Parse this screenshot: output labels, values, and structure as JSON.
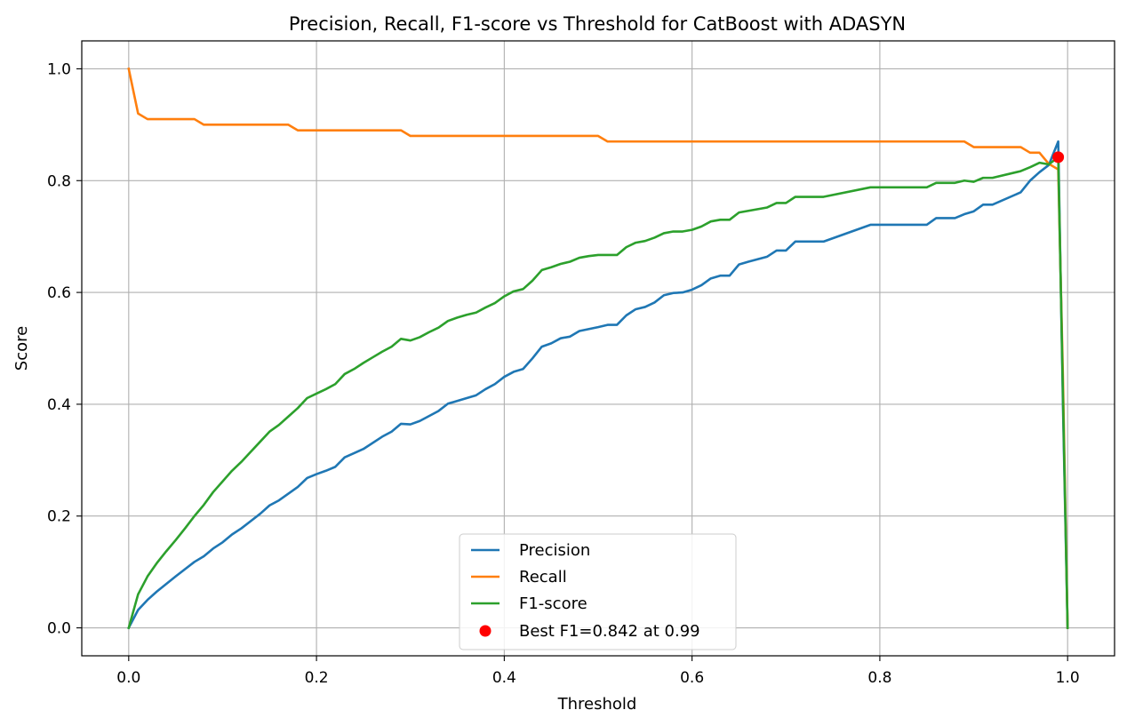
{
  "chart_data": {
    "type": "line",
    "title": "Precision, Recall, F1-score vs Threshold for CatBoost with ADASYN",
    "xlabel": "Threshold",
    "ylabel": "Score",
    "xlim": [
      -0.05,
      1.05
    ],
    "ylim": [
      -0.05,
      1.05
    ],
    "xticks": [
      0.0,
      0.2,
      0.4,
      0.6,
      0.8,
      1.0
    ],
    "xtick_labels": [
      "0.0",
      "0.2",
      "0.4",
      "0.6",
      "0.8",
      "1.0"
    ],
    "yticks": [
      0.0,
      0.2,
      0.4,
      0.6,
      0.8,
      1.0
    ],
    "ytick_labels": [
      "0.0",
      "0.2",
      "0.4",
      "0.6",
      "0.8",
      "1.0"
    ],
    "grid": true,
    "legend_position": "bottom-center",
    "series": [
      {
        "name": "Precision",
        "color": "#1f77b4",
        "points": [
          [
            0.0,
            0.0
          ],
          [
            0.01,
            0.032
          ],
          [
            0.02,
            0.05
          ],
          [
            0.03,
            0.065
          ],
          [
            0.05,
            0.092
          ],
          [
            0.07,
            0.118
          ],
          [
            0.08,
            0.128
          ],
          [
            0.09,
            0.142
          ],
          [
            0.1,
            0.153
          ],
          [
            0.11,
            0.167
          ],
          [
            0.12,
            0.178
          ],
          [
            0.13,
            0.191
          ],
          [
            0.14,
            0.204
          ],
          [
            0.15,
            0.219
          ],
          [
            0.16,
            0.228
          ],
          [
            0.17,
            0.24
          ],
          [
            0.18,
            0.252
          ],
          [
            0.19,
            0.268
          ],
          [
            0.2,
            0.275
          ],
          [
            0.21,
            0.281
          ],
          [
            0.22,
            0.288
          ],
          [
            0.23,
            0.305
          ],
          [
            0.25,
            0.32
          ],
          [
            0.27,
            0.342
          ],
          [
            0.28,
            0.351
          ],
          [
            0.29,
            0.365
          ],
          [
            0.3,
            0.364
          ],
          [
            0.31,
            0.37
          ],
          [
            0.32,
            0.379
          ],
          [
            0.33,
            0.388
          ],
          [
            0.34,
            0.401
          ],
          [
            0.36,
            0.411
          ],
          [
            0.37,
            0.416
          ],
          [
            0.38,
            0.427
          ],
          [
            0.39,
            0.436
          ],
          [
            0.4,
            0.449
          ],
          [
            0.41,
            0.458
          ],
          [
            0.42,
            0.463
          ],
          [
            0.43,
            0.482
          ],
          [
            0.44,
            0.503
          ],
          [
            0.45,
            0.509
          ],
          [
            0.46,
            0.518
          ],
          [
            0.47,
            0.521
          ],
          [
            0.48,
            0.531
          ],
          [
            0.5,
            0.538
          ],
          [
            0.51,
            0.542
          ],
          [
            0.52,
            0.542
          ],
          [
            0.53,
            0.559
          ],
          [
            0.54,
            0.57
          ],
          [
            0.55,
            0.574
          ],
          [
            0.56,
            0.582
          ],
          [
            0.57,
            0.595
          ],
          [
            0.58,
            0.599
          ],
          [
            0.59,
            0.6
          ],
          [
            0.6,
            0.605
          ],
          [
            0.61,
            0.613
          ],
          [
            0.62,
            0.625
          ],
          [
            0.63,
            0.63
          ],
          [
            0.64,
            0.63
          ],
          [
            0.65,
            0.65
          ],
          [
            0.66,
            0.655
          ],
          [
            0.68,
            0.664
          ],
          [
            0.69,
            0.675
          ],
          [
            0.7,
            0.675
          ],
          [
            0.71,
            0.691
          ],
          [
            0.74,
            0.691
          ],
          [
            0.79,
            0.721
          ],
          [
            0.85,
            0.721
          ],
          [
            0.86,
            0.733
          ],
          [
            0.88,
            0.733
          ],
          [
            0.89,
            0.74
          ],
          [
            0.9,
            0.745
          ],
          [
            0.91,
            0.757
          ],
          [
            0.92,
            0.757
          ],
          [
            0.95,
            0.779
          ],
          [
            0.96,
            0.8
          ],
          [
            0.97,
            0.815
          ],
          [
            0.98,
            0.828
          ],
          [
            0.99,
            0.87
          ],
          [
            0.995,
            0.4
          ],
          [
            1.0,
            0.0
          ]
        ]
      },
      {
        "name": "Recall",
        "color": "#ff7f0e",
        "points": [
          [
            0.0,
            1.0
          ],
          [
            0.01,
            0.92
          ],
          [
            0.02,
            0.91
          ],
          [
            0.07,
            0.91
          ],
          [
            0.08,
            0.9
          ],
          [
            0.17,
            0.9
          ],
          [
            0.18,
            0.89
          ],
          [
            0.29,
            0.89
          ],
          [
            0.3,
            0.88
          ],
          [
            0.5,
            0.88
          ],
          [
            0.51,
            0.87
          ],
          [
            0.89,
            0.87
          ],
          [
            0.9,
            0.86
          ],
          [
            0.95,
            0.86
          ],
          [
            0.96,
            0.85
          ],
          [
            0.97,
            0.85
          ],
          [
            0.98,
            0.83
          ],
          [
            0.99,
            0.82
          ],
          [
            0.995,
            0.45
          ],
          [
            1.0,
            0.0
          ]
        ]
      },
      {
        "name": "F1-score",
        "color": "#2ca02c",
        "points": [
          [
            0.0,
            0.0
          ],
          [
            0.01,
            0.06
          ],
          [
            0.02,
            0.092
          ],
          [
            0.03,
            0.116
          ],
          [
            0.04,
            0.137
          ],
          [
            0.05,
            0.157
          ],
          [
            0.06,
            0.178
          ],
          [
            0.07,
            0.2
          ],
          [
            0.08,
            0.22
          ],
          [
            0.09,
            0.243
          ],
          [
            0.1,
            0.262
          ],
          [
            0.11,
            0.281
          ],
          [
            0.12,
            0.297
          ],
          [
            0.13,
            0.315
          ],
          [
            0.14,
            0.333
          ],
          [
            0.15,
            0.351
          ],
          [
            0.16,
            0.363
          ],
          [
            0.17,
            0.378
          ],
          [
            0.18,
            0.393
          ],
          [
            0.19,
            0.411
          ],
          [
            0.2,
            0.419
          ],
          [
            0.21,
            0.427
          ],
          [
            0.22,
            0.436
          ],
          [
            0.23,
            0.454
          ],
          [
            0.24,
            0.463
          ],
          [
            0.25,
            0.474
          ],
          [
            0.26,
            0.484
          ],
          [
            0.27,
            0.494
          ],
          [
            0.28,
            0.503
          ],
          [
            0.29,
            0.517
          ],
          [
            0.3,
            0.514
          ],
          [
            0.31,
            0.52
          ],
          [
            0.32,
            0.529
          ],
          [
            0.33,
            0.537
          ],
          [
            0.34,
            0.549
          ],
          [
            0.35,
            0.555
          ],
          [
            0.36,
            0.56
          ],
          [
            0.37,
            0.564
          ],
          [
            0.38,
            0.573
          ],
          [
            0.39,
            0.581
          ],
          [
            0.4,
            0.593
          ],
          [
            0.41,
            0.602
          ],
          [
            0.42,
            0.606
          ],
          [
            0.43,
            0.621
          ],
          [
            0.44,
            0.64
          ],
          [
            0.45,
            0.645
          ],
          [
            0.46,
            0.651
          ],
          [
            0.47,
            0.655
          ],
          [
            0.48,
            0.662
          ],
          [
            0.49,
            0.665
          ],
          [
            0.5,
            0.667
          ],
          [
            0.52,
            0.667
          ],
          [
            0.53,
            0.681
          ],
          [
            0.54,
            0.689
          ],
          [
            0.55,
            0.692
          ],
          [
            0.56,
            0.698
          ],
          [
            0.57,
            0.706
          ],
          [
            0.58,
            0.709
          ],
          [
            0.59,
            0.709
          ],
          [
            0.6,
            0.712
          ],
          [
            0.61,
            0.718
          ],
          [
            0.62,
            0.727
          ],
          [
            0.63,
            0.73
          ],
          [
            0.64,
            0.73
          ],
          [
            0.65,
            0.743
          ],
          [
            0.68,
            0.752
          ],
          [
            0.69,
            0.76
          ],
          [
            0.7,
            0.76
          ],
          [
            0.71,
            0.771
          ],
          [
            0.74,
            0.771
          ],
          [
            0.79,
            0.788
          ],
          [
            0.85,
            0.788
          ],
          [
            0.86,
            0.796
          ],
          [
            0.88,
            0.796
          ],
          [
            0.89,
            0.8
          ],
          [
            0.9,
            0.798
          ],
          [
            0.91,
            0.805
          ],
          [
            0.92,
            0.805
          ],
          [
            0.95,
            0.817
          ],
          [
            0.96,
            0.824
          ],
          [
            0.97,
            0.832
          ],
          [
            0.98,
            0.829
          ],
          [
            0.99,
            0.842
          ],
          [
            0.995,
            0.42
          ],
          [
            1.0,
            0.0
          ]
        ]
      }
    ],
    "best_point": {
      "label": "Best F1=0.842 at 0.99",
      "x": 0.99,
      "y": 0.842,
      "color": "#ff0000"
    }
  }
}
